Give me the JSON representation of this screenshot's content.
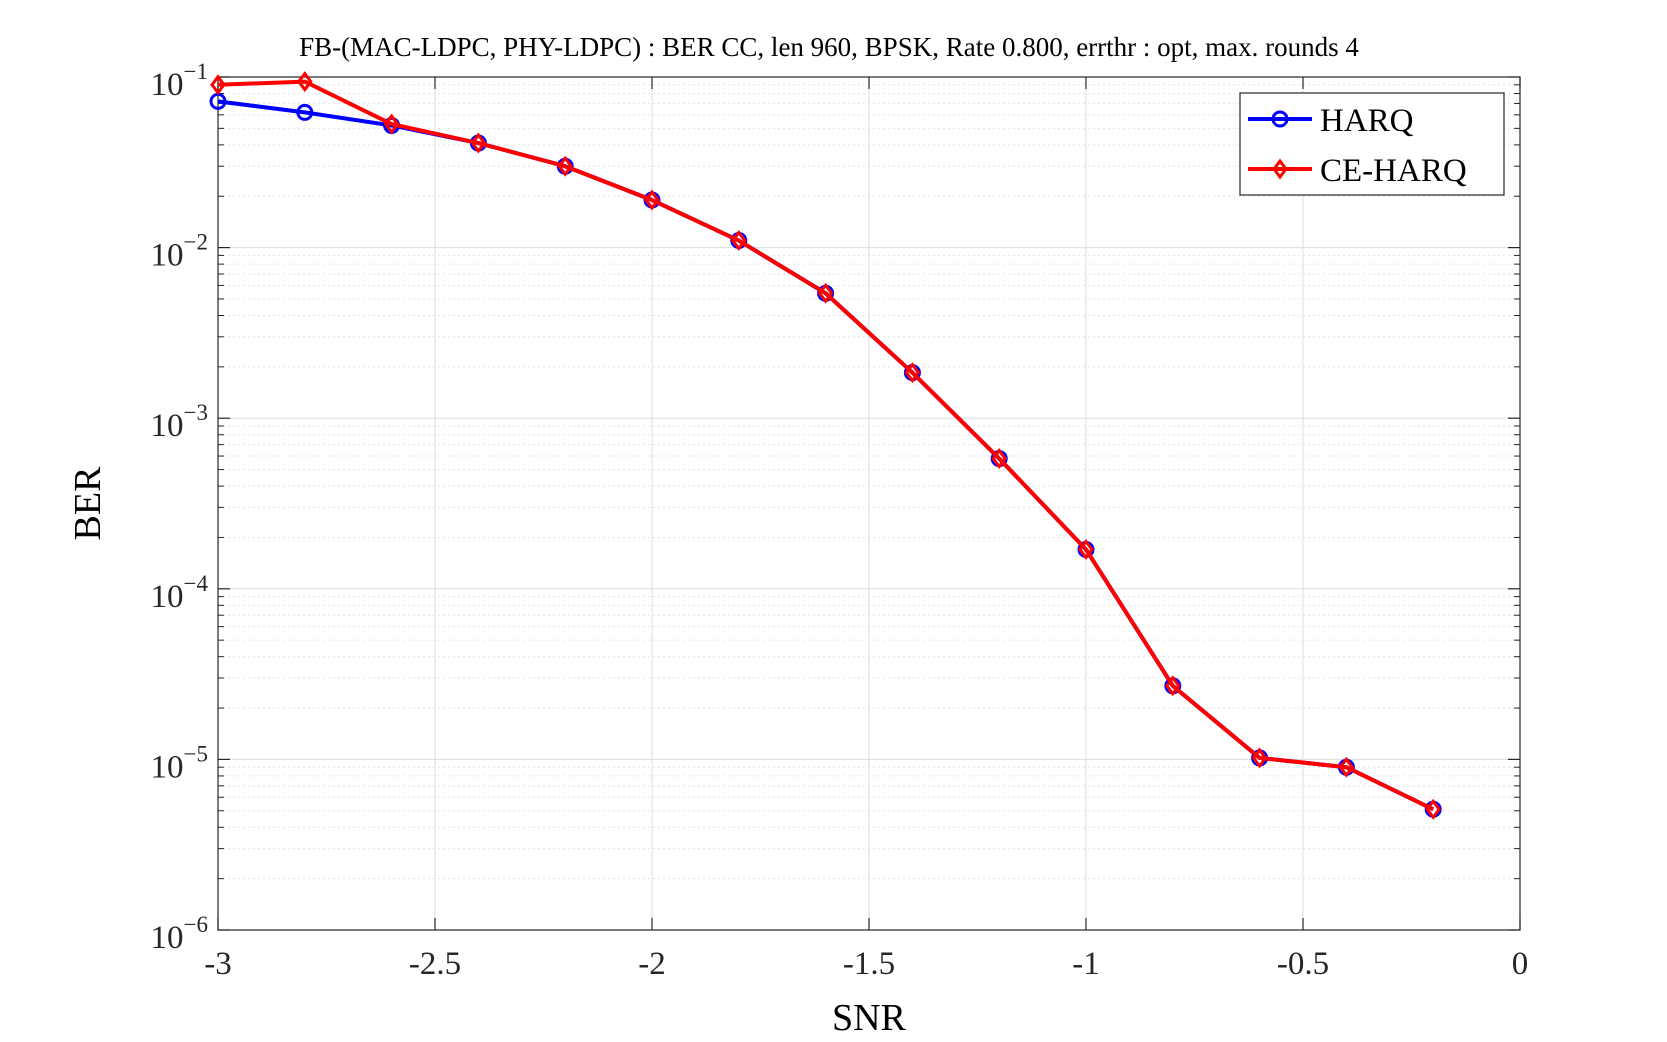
{
  "chart_data": {
    "type": "line",
    "title": "FB-(MAC-LDPC, PHY-LDPC) : BER CC, len 960, BPSK, Rate 0.800, errthr : opt, max. rounds 4",
    "xlabel": "SNR",
    "ylabel": "BER",
    "xlim": [
      -3,
      0
    ],
    "ylim": [
      1e-06,
      0.1
    ],
    "yscale": "log",
    "grid": true,
    "legend_position": "top-right",
    "x_ticks": [
      "-3",
      "-2.5",
      "-2",
      "-1.5",
      "-1",
      "-0.5",
      "0"
    ],
    "y_ticks": [
      {
        "base": "10",
        "exp": "−1"
      },
      {
        "base": "10",
        "exp": "−2"
      },
      {
        "base": "10",
        "exp": "−3"
      },
      {
        "base": "10",
        "exp": "−4"
      },
      {
        "base": "10",
        "exp": "−5"
      },
      {
        "base": "10",
        "exp": "−6"
      }
    ],
    "x": [
      -3.0,
      -2.8,
      -2.6,
      -2.4,
      -2.2,
      -2.0,
      -1.8,
      -1.6,
      -1.4,
      -1.2,
      -1.0,
      -0.8,
      -0.6,
      -0.4,
      -0.2
    ],
    "series": [
      {
        "name": "HARQ",
        "color": "#0000ff",
        "marker": "circle",
        "values": [
          0.072,
          0.062,
          0.052,
          0.041,
          0.03,
          0.019,
          0.011,
          0.0054,
          0.00185,
          0.00058,
          0.00017,
          2.7e-05,
          1.02e-05,
          9e-06,
          5.1e-06
        ]
      },
      {
        "name": "CE-HARQ",
        "color": "#ff0000",
        "marker": "diamond",
        "values": [
          0.09,
          0.094,
          0.053,
          0.041,
          0.03,
          0.019,
          0.011,
          0.0054,
          0.00185,
          0.00058,
          0.00017,
          2.7e-05,
          1.02e-05,
          9e-06,
          5.1e-06
        ]
      }
    ]
  }
}
